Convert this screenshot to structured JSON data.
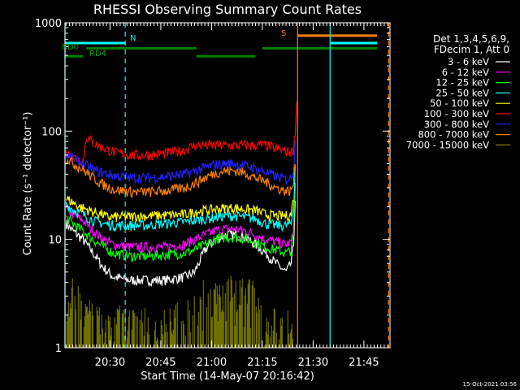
{
  "chart_data": {
    "type": "line",
    "title": "RHESSI Observing Summary Count Rates",
    "xlabel": "Start Time (14-May-07 20:16:42)",
    "ylabel": "Count Rate (s⁻¹ detector⁻¹)",
    "y_scale": "log",
    "ylim": [
      1,
      1000
    ],
    "xlim_minutes_after_2016": [
      0.7,
      96.7
    ],
    "x_ticks": [
      {
        "t": 14,
        "label": "20:30"
      },
      {
        "t": 29,
        "label": "20:45"
      },
      {
        "t": 44,
        "label": "21:00"
      },
      {
        "t": 59,
        "label": "21:15"
      },
      {
        "t": 74,
        "label": "21:30"
      },
      {
        "t": 89,
        "label": "21:45"
      }
    ],
    "y_ticks": [
      {
        "v": 1,
        "label": "1"
      },
      {
        "v": 10,
        "label": "10"
      },
      {
        "v": 100,
        "label": "100"
      },
      {
        "v": 1000,
        "label": "1000"
      }
    ],
    "legend_header": [
      "Det 1,3,4,5,6,9,",
      "FDecim 1, Att 0"
    ],
    "legend_placement": "right",
    "series": [
      {
        "name": "3 - 6 keV",
        "color": "#ffffff",
        "x": [
          1,
          3,
          6,
          9,
          12,
          15,
          20,
          25,
          30,
          36,
          39,
          42,
          45,
          48,
          51,
          54,
          57,
          60,
          63,
          66,
          67.5,
          68.2,
          68.8
        ],
        "y": [
          14,
          12,
          10,
          7.5,
          5.5,
          4.5,
          4.2,
          4.2,
          4.2,
          4.5,
          5,
          8,
          10,
          11,
          11,
          10.5,
          9,
          7.5,
          6,
          5,
          6,
          9,
          30
        ]
      },
      {
        "name": "6 - 12 keV",
        "color": "#ff00ff",
        "x": [
          1,
          3,
          6,
          9,
          12,
          15,
          20,
          25,
          30,
          36,
          39,
          42,
          45,
          48,
          51,
          54,
          57,
          60,
          63,
          66,
          67.5,
          68.2,
          68.8
        ],
        "y": [
          19,
          17,
          15,
          12,
          10,
          9,
          8.5,
          8.5,
          8.5,
          9,
          10,
          11,
          12,
          12.5,
          12.5,
          12,
          11,
          10,
          9.5,
          9,
          9.5,
          12,
          40
        ]
      },
      {
        "name": "12 - 25 keV",
        "color": "#00ff00",
        "x": [
          1,
          3,
          6,
          9,
          12,
          15,
          20,
          25,
          30,
          36,
          39,
          42,
          45,
          48,
          51,
          54,
          57,
          60,
          63,
          66,
          67.5,
          68.2,
          68.8
        ],
        "y": [
          16,
          14,
          12,
          10,
          8.5,
          7.5,
          7,
          7,
          7.2,
          7.5,
          8,
          9,
          10,
          10.5,
          10.5,
          10.2,
          9.5,
          8.5,
          8,
          7.5,
          8,
          11,
          45
        ]
      },
      {
        "name": "25 - 50 keV",
        "color": "#00ffff",
        "x": [
          1,
          3,
          6,
          9,
          12,
          15,
          20,
          25,
          30,
          36,
          39,
          42,
          45,
          48,
          51,
          54,
          57,
          60,
          63,
          66,
          67.5,
          68.2,
          68.8
        ],
        "y": [
          21,
          19,
          17,
          15,
          14,
          13.5,
          13.5,
          13.5,
          14,
          14.5,
          15,
          15.5,
          16,
          16.5,
          16.5,
          16,
          15.5,
          14,
          13.5,
          13.5,
          14,
          20,
          60
        ]
      },
      {
        "name": "50 - 100 keV",
        "color": "#ffff00",
        "x": [
          1,
          5,
          9,
          12,
          13,
          36,
          39,
          42,
          45,
          48,
          51,
          54,
          57,
          58,
          60,
          63,
          66,
          67.5,
          68.2
        ],
        "y": [
          24,
          20,
          18,
          17,
          16,
          17,
          18,
          18.5,
          19,
          19.5,
          19.5,
          19,
          18.5,
          18,
          17,
          16.5,
          16.5,
          17,
          25
        ]
      },
      {
        "name": "100 - 300 keV",
        "color": "#ff0000",
        "x": [
          1,
          3,
          6,
          7,
          9,
          12,
          15,
          20,
          25,
          30,
          36,
          38.9,
          39.5,
          58.5,
          60,
          63,
          66,
          67.5,
          68.2,
          68.8,
          69.2
        ],
        "y": [
          62,
          58,
          53,
          88,
          78,
          70,
          64,
          60,
          60,
          62,
          67,
          74,
          74,
          74,
          74,
          69,
          65,
          64,
          68,
          110,
          200
        ]
      },
      {
        "name": "300 - 800 keV",
        "color": "#2020ff",
        "x": [
          1,
          3,
          6,
          9,
          12,
          15,
          20,
          25,
          30,
          36,
          39,
          42,
          45,
          48,
          51,
          54,
          57,
          60,
          63,
          66,
          67.5,
          68.2,
          68.8
        ],
        "y": [
          62,
          56,
          50,
          44,
          41,
          39,
          37,
          37,
          38,
          40,
          43,
          46,
          49,
          50,
          50,
          48,
          45,
          42,
          38,
          36,
          37,
          45,
          90
        ]
      },
      {
        "name": "800 - 7000 keV",
        "color": "#ff8000",
        "x": [
          1,
          3,
          6,
          9,
          12,
          15,
          20,
          25,
          30,
          36,
          39,
          42,
          45,
          48,
          51,
          54,
          57,
          60,
          63,
          66,
          67.5,
          68.2,
          68.8
        ],
        "y": [
          57,
          51,
          44,
          37,
          32,
          29,
          27.5,
          27.5,
          28,
          30,
          33,
          37,
          41,
          43,
          43,
          41,
          37,
          34,
          30,
          28,
          28,
          33,
          60
        ]
      },
      {
        "name": "7000 - 15000 keV",
        "color": "#808000",
        "x": [
          1,
          2,
          4,
          5,
          7,
          9,
          11,
          13,
          16,
          19,
          22,
          25,
          28,
          31,
          34,
          37,
          40,
          44,
          48,
          52,
          56,
          58,
          60,
          63,
          66,
          67.5,
          68.2
        ],
        "y": [
          3.2,
          3.0,
          2.6,
          2.4,
          1.8,
          1.6,
          1.5,
          1.4,
          1.5,
          1.5,
          1.4,
          1.5,
          1.5,
          1.4,
          1.6,
          1.8,
          2.4,
          2.8,
          2.9,
          2.9,
          2.6,
          2.2,
          1.5,
          1.4,
          1.4,
          1.5,
          1.6
        ]
      }
    ],
    "annotations": [
      {
        "text": "N",
        "color": "#00ffff"
      },
      {
        "text": "S",
        "color": "#ff8000"
      },
      {
        "text": "RD0",
        "color": "#00a000"
      },
      {
        "text": "RD4",
        "color": "#00a000"
      }
    ],
    "flag_bars": [
      {
        "name": "night",
        "color": "#00ffff",
        "y": 650,
        "spans": [
          [
            0.7,
            18.5
          ],
          [
            79,
            96.7
          ]
        ]
      },
      {
        "name": "saa",
        "color": "#ff8000",
        "y": 760,
        "spans": [
          [
            69.4,
            96.7
          ]
        ]
      },
      {
        "name": "decim-a",
        "color": "#008000",
        "y": 580,
        "spans": [
          [
            7,
            39.5
          ],
          [
            59,
            96.7
          ]
        ]
      },
      {
        "name": "decim-b",
        "color": "#008000",
        "y": 490,
        "spans": [
          [
            0.7,
            6
          ],
          [
            39.5,
            57
          ]
        ]
      }
    ],
    "vlines": [
      {
        "t": 0.7,
        "color": "#00ffff",
        "style": "solid"
      },
      {
        "t": 18.5,
        "color": "#00ffff",
        "style": "dashed"
      },
      {
        "t": 69.4,
        "color": "#ff8000",
        "style": "solid"
      },
      {
        "t": 79,
        "color": "#00ffff",
        "style": "solid"
      },
      {
        "t": 96.3,
        "color": "#ff8000",
        "style": "dashed"
      }
    ],
    "timestamp": "15-Oct-2021 03:56"
  }
}
